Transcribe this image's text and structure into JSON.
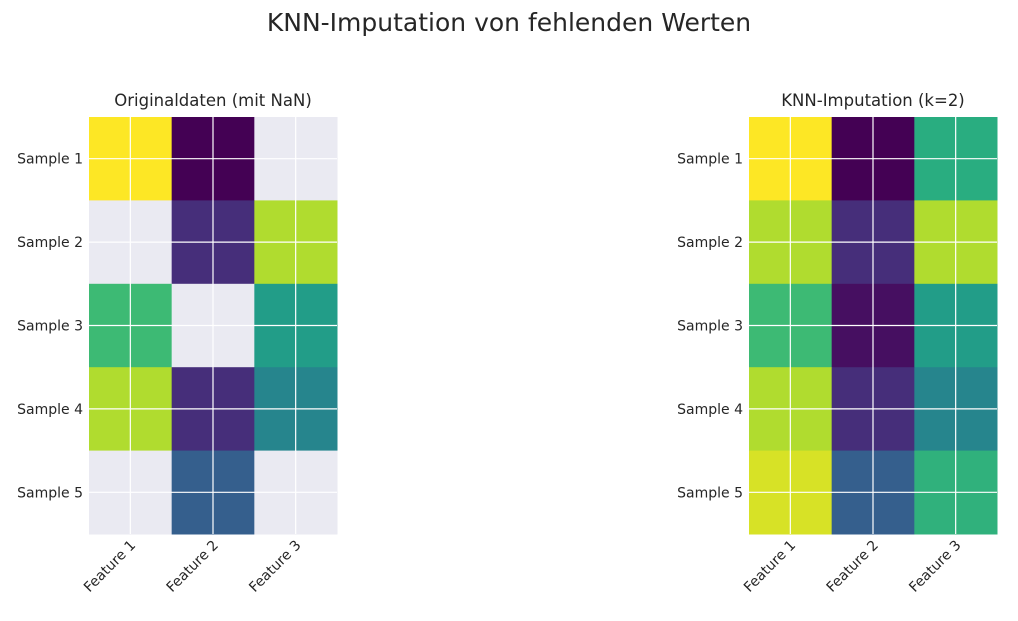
{
  "figure": {
    "suptitle": "KNN-Imputation von fehlenden Werten",
    "missing_color": "#EAEAF2",
    "grid_color": "#FFFFFF",
    "colormap": "viridis"
  },
  "chart_data": [
    {
      "type": "heatmap",
      "title": "Originaldaten (mit NaN)",
      "xlabel": "",
      "ylabel": "",
      "rows": [
        "Sample 1",
        "Sample 2",
        "Sample 3",
        "Sample 4",
        "Sample 5"
      ],
      "columns": [
        "Feature 1",
        "Feature 2",
        "Feature 3"
      ],
      "values": [
        [
          1.0,
          0.0,
          null
        ],
        [
          null,
          0.13,
          0.88
        ],
        [
          0.68,
          null,
          0.55
        ],
        [
          0.88,
          0.13,
          0.45
        ],
        [
          null,
          0.3,
          null
        ]
      ],
      "colormap": "viridis",
      "missing_color": "#EAEAF2",
      "grid": true
    },
    {
      "type": "heatmap",
      "title": "KNN-Imputation (k=2)",
      "xlabel": "",
      "ylabel": "",
      "rows": [
        "Sample 1",
        "Sample 2",
        "Sample 3",
        "Sample 4",
        "Sample 5"
      ],
      "columns": [
        "Feature 1",
        "Feature 2",
        "Feature 3"
      ],
      "values": [
        [
          1.0,
          0.0,
          0.62
        ],
        [
          0.88,
          0.13,
          0.88
        ],
        [
          0.68,
          0.04,
          0.55
        ],
        [
          0.88,
          0.13,
          0.45
        ],
        [
          0.94,
          0.3,
          0.64
        ]
      ],
      "colormap": "viridis",
      "grid": true
    }
  ]
}
